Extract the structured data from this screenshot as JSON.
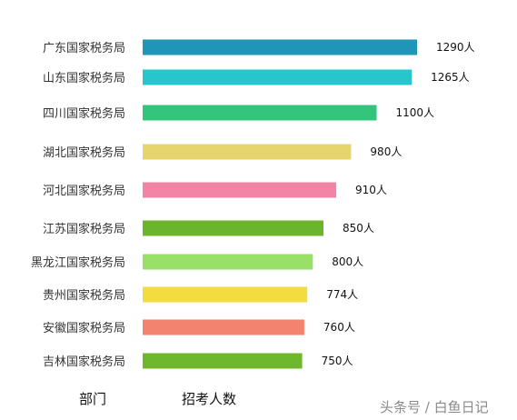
{
  "chart_data": {
    "type": "bar",
    "orientation": "horizontal",
    "categories": [
      "广东国家税务局",
      "山东国家税务局",
      "四川国家税务局",
      "湖北国家税务局",
      "河北国家税务局",
      "江苏国家税务局",
      "黑龙江国家税务局",
      "贵州国家税务局",
      "安徽国家税务局",
      "吉林国家税务局"
    ],
    "values": [
      1290,
      1265,
      1100,
      980,
      910,
      850,
      800,
      774,
      760,
      750
    ],
    "value_labels": [
      "1290人",
      "1265人",
      "1100人",
      "980人",
      "910人",
      "850人",
      "800人",
      "774人",
      "760人",
      "750人"
    ],
    "colors": [
      "#1f96b8",
      "#27c6cc",
      "#35c47b",
      "#e6d46c",
      "#f285a6",
      "#6ab52c",
      "#98e068",
      "#f3dc40",
      "#f3826e",
      "#6fb82e"
    ],
    "xlabel": "部门",
    "ylabel": "招考人数",
    "grid": false,
    "legend": "none"
  },
  "watermark": "头条号 / 白鱼日记"
}
